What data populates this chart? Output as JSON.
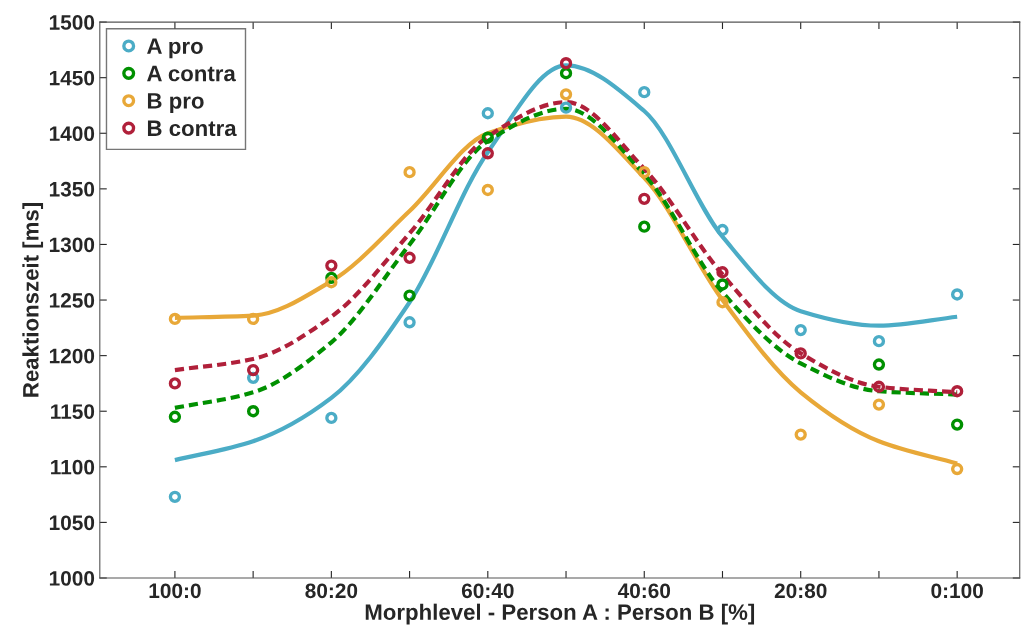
{
  "chart_data": {
    "type": "scatter",
    "xlabel": "Morphlevel - Person A : Person B [%]",
    "ylabel": "Reaktionszeit [ms]",
    "categories": [
      "100:0",
      null,
      "80:20",
      null,
      "60:40",
      null,
      "40:60",
      null,
      "20:80",
      null,
      "0:100"
    ],
    "ylim": [
      1000,
      1500
    ],
    "yticks": [
      1000,
      1050,
      1100,
      1150,
      1200,
      1250,
      1300,
      1350,
      1400,
      1450,
      1500
    ],
    "grid": false,
    "legend": "top left",
    "series": [
      {
        "type": "line",
        "color": "#4bacc6",
        "line_style": "solid",
        "values": [
          1106,
          1123,
          1162,
          1248,
          1383,
          1461,
          1420,
          1307,
          1240,
          1227,
          1235
        ]
      },
      {
        "type": "line",
        "color": "#e8a838",
        "line_style": "solid",
        "values": [
          1234,
          1236,
          1267,
          1330,
          1400,
          1415,
          1360,
          1250,
          1167,
          1123,
          1103
        ]
      },
      {
        "type": "line",
        "color": "#009000",
        "line_style": "dashed",
        "values": [
          1153,
          1167,
          1212,
          1300,
          1393,
          1422,
          1363,
          1257,
          1193,
          1168,
          1165
        ]
      },
      {
        "type": "line",
        "color": "#b0203a",
        "line_style": "dashed",
        "values": [
          1187,
          1197,
          1235,
          1310,
          1397,
          1428,
          1368,
          1273,
          1202,
          1172,
          1167
        ]
      },
      {
        "name": "A pro",
        "color": "#4bacc6",
        "marker": "circle",
        "values": [
          1073,
          1180,
          1144,
          1230,
          1418,
          1423,
          1437,
          1313,
          1223,
          1213,
          1255
        ]
      },
      {
        "name": "A contra",
        "color": "#009000",
        "marker": "circle",
        "values": [
          1145,
          1150,
          1270,
          1254,
          1396,
          1454,
          1316,
          1264,
          null,
          1192,
          1138
        ]
      },
      {
        "name": "B pro",
        "color": "#e8a838",
        "marker": "circle",
        "values": [
          1233,
          1233,
          1266,
          1365,
          1349,
          1435,
          1365,
          1248,
          1129,
          1156,
          1098
        ]
      },
      {
        "name": "B contra",
        "color": "#b0203a",
        "marker": "circle",
        "values": [
          1175,
          1187,
          1281,
          1288,
          1382,
          1463,
          1341,
          1275,
          1202,
          1172,
          1168
        ]
      }
    ]
  }
}
